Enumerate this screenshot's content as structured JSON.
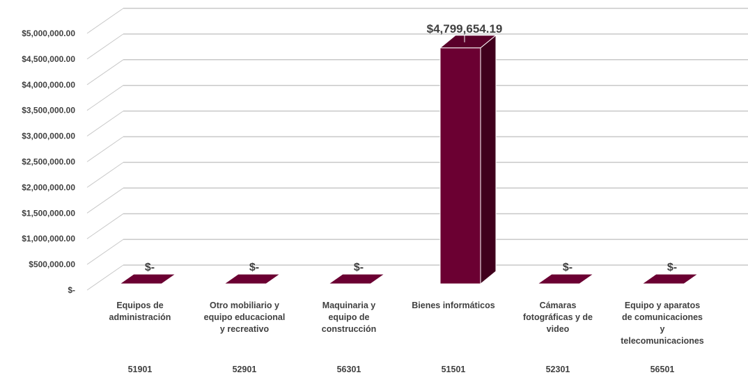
{
  "chart_data": {
    "type": "bar",
    "title": "",
    "xlabel": "",
    "ylabel": "",
    "three_d": true,
    "grid": true,
    "ylim": [
      0,
      5000000
    ],
    "y_ticks": [
      0,
      500000,
      1000000,
      1500000,
      2000000,
      2500000,
      3000000,
      3500000,
      4000000,
      4500000,
      5000000
    ],
    "y_tick_labels": [
      "$-",
      "$500,000.00",
      "$1,000,000.00",
      "$1,500,000.00",
      "$2,000,000.00",
      "$2,500,000.00",
      "$3,000,000.00",
      "$3,500,000.00",
      "$4,000,000.00",
      "$4,500,000.00",
      "$5,000,000.00"
    ],
    "categories": [
      [
        "Equipos de",
        "administración"
      ],
      [
        "Otro mobiliario y",
        "equipo educacional",
        "y recreativo"
      ],
      [
        "Maquinaria y",
        "equipo de",
        "construcción"
      ],
      [
        "Bienes informáticos"
      ],
      [
        "Cámaras",
        "fotográficas y de",
        "video"
      ],
      [
        "Equipo y aparatos",
        "de comunicaciones",
        "y",
        "telecomunicaciones"
      ]
    ],
    "codes": [
      "51901",
      "52901",
      "56301",
      "51501",
      "52301",
      "56501"
    ],
    "values": [
      0,
      0,
      0,
      4799654.19,
      0,
      0
    ],
    "data_labels": [
      "$-",
      "$-",
      "$-",
      "$4,799,654.19",
      "$-",
      "$-"
    ],
    "colors": {
      "bar": "#6b0032",
      "bar_side": "#40001d",
      "bar_top": "#5a002a",
      "grid": "#c8c8c8",
      "text": "#404040"
    }
  }
}
